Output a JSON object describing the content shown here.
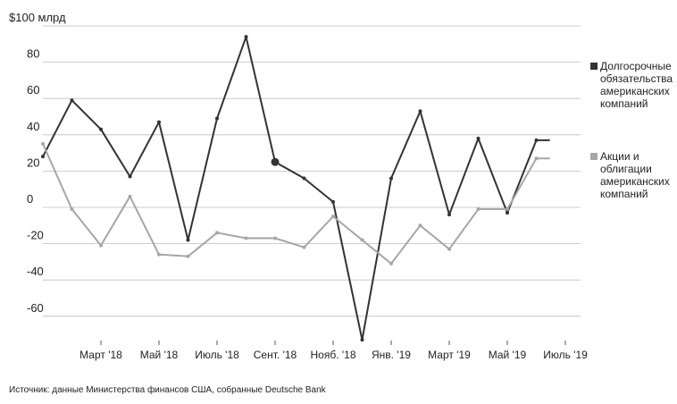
{
  "chart_data": {
    "type": "line",
    "y_unit_label": "$100 млрд",
    "ylim": [
      -75,
      100
    ],
    "yticks": [
      {
        "value": 80,
        "label": "80"
      },
      {
        "value": 60,
        "label": "60"
      },
      {
        "value": 40,
        "label": "40"
      },
      {
        "value": 20,
        "label": "20"
      },
      {
        "value": 0,
        "label": "0"
      },
      {
        "value": -20,
        "label": "-20"
      },
      {
        "value": -40,
        "label": "-40"
      },
      {
        "value": -60,
        "label": "-60"
      }
    ],
    "y_unit_tick": 100,
    "xlim": [
      "2018-01",
      "2019-07"
    ],
    "xticks": [
      {
        "x": "2018-03",
        "label": "Март '18"
      },
      {
        "x": "2018-05",
        "label": "Май '18"
      },
      {
        "x": "2018-07",
        "label": "Июль '18"
      },
      {
        "x": "2018-09",
        "label": "Сент. '18"
      },
      {
        "x": "2018-11",
        "label": "Нояб. '18"
      },
      {
        "x": "2019-01",
        "label": "Янв. '19"
      },
      {
        "x": "2019-03",
        "label": "Март '19"
      },
      {
        "x": "2019-05",
        "label": "Май '19"
      },
      {
        "x": "2019-07",
        "label": "Июль '19"
      }
    ],
    "grid": true,
    "legend_position": "right",
    "series": [
      {
        "name": "Долгосрочные обязательства американских компаний",
        "color": "#333333",
        "points": [
          {
            "x": "2018-01",
            "y": 28
          },
          {
            "x": "2018-02",
            "y": 59
          },
          {
            "x": "2018-03",
            "y": 43
          },
          {
            "x": "2018-04",
            "y": 17
          },
          {
            "x": "2018-05",
            "y": 47
          },
          {
            "x": "2018-06",
            "y": -18
          },
          {
            "x": "2018-07",
            "y": 49
          },
          {
            "x": "2018-08",
            "y": 94
          },
          {
            "x": "2018-09",
            "y": 25
          },
          {
            "x": "2018-10",
            "y": 16
          },
          {
            "x": "2018-11",
            "y": 3
          },
          {
            "x": "2018-12",
            "y": -73
          },
          {
            "x": "2019-01",
            "y": 16
          },
          {
            "x": "2019-02",
            "y": 53
          },
          {
            "x": "2019-03",
            "y": -4
          },
          {
            "x": "2019-04",
            "y": 38
          },
          {
            "x": "2019-05",
            "y": -3
          },
          {
            "x": "2019-06",
            "y": 37
          },
          {
            "x": "2019-06-15",
            "y": 37
          }
        ],
        "highlight_point_index": 8
      },
      {
        "name": "Акции и облигации американских компаний",
        "color": "#a6a6a6",
        "points": [
          {
            "x": "2018-01",
            "y": 35
          },
          {
            "x": "2018-02",
            "y": -1
          },
          {
            "x": "2018-03",
            "y": -21
          },
          {
            "x": "2018-04",
            "y": 6
          },
          {
            "x": "2018-05",
            "y": -26
          },
          {
            "x": "2018-06",
            "y": -27
          },
          {
            "x": "2018-07",
            "y": -14
          },
          {
            "x": "2018-08",
            "y": -17
          },
          {
            "x": "2018-09",
            "y": -17
          },
          {
            "x": "2018-10",
            "y": -22
          },
          {
            "x": "2018-11",
            "y": -5
          },
          {
            "x": "2018-12",
            "y": -18
          },
          {
            "x": "2019-01",
            "y": -31
          },
          {
            "x": "2019-02",
            "y": -10
          },
          {
            "x": "2019-03",
            "y": -23
          },
          {
            "x": "2019-04",
            "y": -1
          },
          {
            "x": "2019-05",
            "y": -1
          },
          {
            "x": "2019-06",
            "y": 27
          },
          {
            "x": "2019-06-15",
            "y": 27
          }
        ]
      }
    ]
  },
  "legend": [
    {
      "lines": [
        "Долгосрочные",
        "обязательства",
        "американских",
        "компаний"
      ],
      "color": "#333333"
    },
    {
      "lines": [
        "Акции и",
        "облигации",
        "американских",
        "компаний"
      ],
      "color": "#a6a6a6"
    }
  ],
  "source": "Источник: данные Министерства финансов США, собранные Deutsche Bank"
}
